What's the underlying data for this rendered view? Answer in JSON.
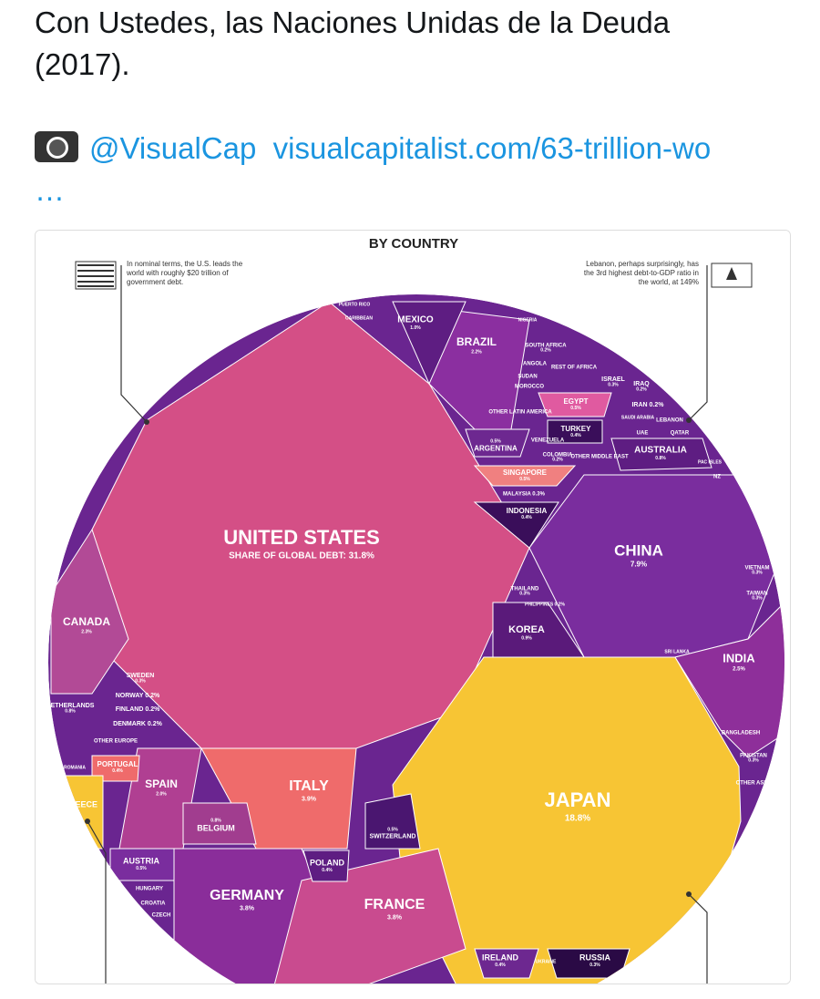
{
  "tweet": {
    "text": "Con Ustedes, las Naciones Unidas de la Deuda (2017).",
    "handle": "@VisualCap",
    "link": "visualcapitalist.com/63-trillion-wo …"
  },
  "graphic": {
    "title": "BY COUNTRY",
    "note_us": "In nominal terms, the U.S. leads the world with roughly $20 trillion of government debt.",
    "note_lebanon": "Lebanon, perhaps surprisingly, has the 3rd highest debt-to-GDP ratio in the world, at 149%",
    "regions": [
      {
        "name": "UNITED STATES",
        "share": "SHARE OF GLOBAL DEBT: 31.8%"
      },
      {
        "name": "JAPAN",
        "share": "18.8%"
      },
      {
        "name": "CHINA",
        "share": "7.9%"
      },
      {
        "name": "ITALY",
        "share": "3.9%"
      },
      {
        "name": "GERMANY",
        "share": "3.8%"
      },
      {
        "name": "FRANCE",
        "share": "3.8%"
      },
      {
        "name": "INDIA",
        "share": "2.5%"
      },
      {
        "name": "CANADA",
        "share": "2.3%"
      },
      {
        "name": "BRAZIL",
        "share": "2.2%"
      },
      {
        "name": "SPAIN",
        "share": "2.0%"
      },
      {
        "name": "MEXICO",
        "share": "1.0%"
      },
      {
        "name": "KOREA",
        "share": "0.9%"
      },
      {
        "name": "AUSTRALIA",
        "share": "0.8%"
      },
      {
        "name": "BELGIUM",
        "share": "0.8%"
      },
      {
        "name": "ARGENTINA",
        "share": "0.5%"
      },
      {
        "name": "SWITZERLAND",
        "share": "0.5%"
      },
      {
        "name": "SINGAPORE",
        "share": "0.5%"
      },
      {
        "name": "EGYPT",
        "share": "0.5%"
      },
      {
        "name": "AUSTRIA",
        "share": "0.5%"
      },
      {
        "name": "TURKEY",
        "share": "0.4%"
      },
      {
        "name": "INDONESIA",
        "share": "0.4%"
      },
      {
        "name": "POLAND",
        "share": "0.4%"
      },
      {
        "name": "PORTUGAL",
        "share": "0.4%"
      },
      {
        "name": "IRELAND",
        "share": "0.4%"
      },
      {
        "name": "RUSSIA",
        "share": "0.3%"
      },
      {
        "name": "GREECE"
      },
      {
        "name": "SWEDEN",
        "share": "0.3%"
      },
      {
        "name": "NORWAY 0.2%"
      },
      {
        "name": "FINLAND 0.2%"
      },
      {
        "name": "DENMARK 0.2%"
      },
      {
        "name": "NETHERLANDS",
        "share": "0.8%"
      },
      {
        "name": "THAILAND",
        "share": "0.3%"
      },
      {
        "name": "TAIWAN",
        "share": "0.3%"
      },
      {
        "name": "VIETNAM",
        "share": "0.3%"
      },
      {
        "name": "ISRAEL",
        "share": "0.3%"
      },
      {
        "name": "IRAQ",
        "share": "0.2%"
      },
      {
        "name": "IRAN 0.2%"
      },
      {
        "name": "MALAYSIA 0.3%"
      },
      {
        "name": "PAKISTAN",
        "share": "0.3%"
      },
      {
        "name": "NZ"
      },
      {
        "name": "UKRAINE"
      },
      {
        "name": "HUNGARY"
      },
      {
        "name": "CROATIA"
      },
      {
        "name": "CZECH"
      },
      {
        "name": "ROMANIA"
      },
      {
        "name": "NIGERIA"
      },
      {
        "name": "ANGOLA"
      },
      {
        "name": "SUDAN"
      },
      {
        "name": "MOROCCO"
      },
      {
        "name": "QATAR"
      },
      {
        "name": "UAE"
      },
      {
        "name": "LEBANON"
      },
      {
        "name": "SAUDI ARABIA"
      },
      {
        "name": "PUERTO RICO"
      },
      {
        "name": "CARIBBEAN"
      },
      {
        "name": "BANGLADESH"
      },
      {
        "name": "SRI LANKA"
      },
      {
        "name": "PHILIPPINES 0.2%"
      },
      {
        "name": "PAC ISLES"
      },
      {
        "name": "OTHER EUROPE"
      },
      {
        "name": "OTHER ASIA"
      },
      {
        "name": "OTHER MIDDLE EAST"
      },
      {
        "name": "REST OF AFRICA"
      },
      {
        "name": "SOUTH AFRICA",
        "share": "0.2%"
      },
      {
        "name": "COLOMBIA",
        "share": "0.2%"
      },
      {
        "name": "VENEZUELA"
      },
      {
        "name": "OTHER LATIN AMERICA"
      }
    ]
  }
}
